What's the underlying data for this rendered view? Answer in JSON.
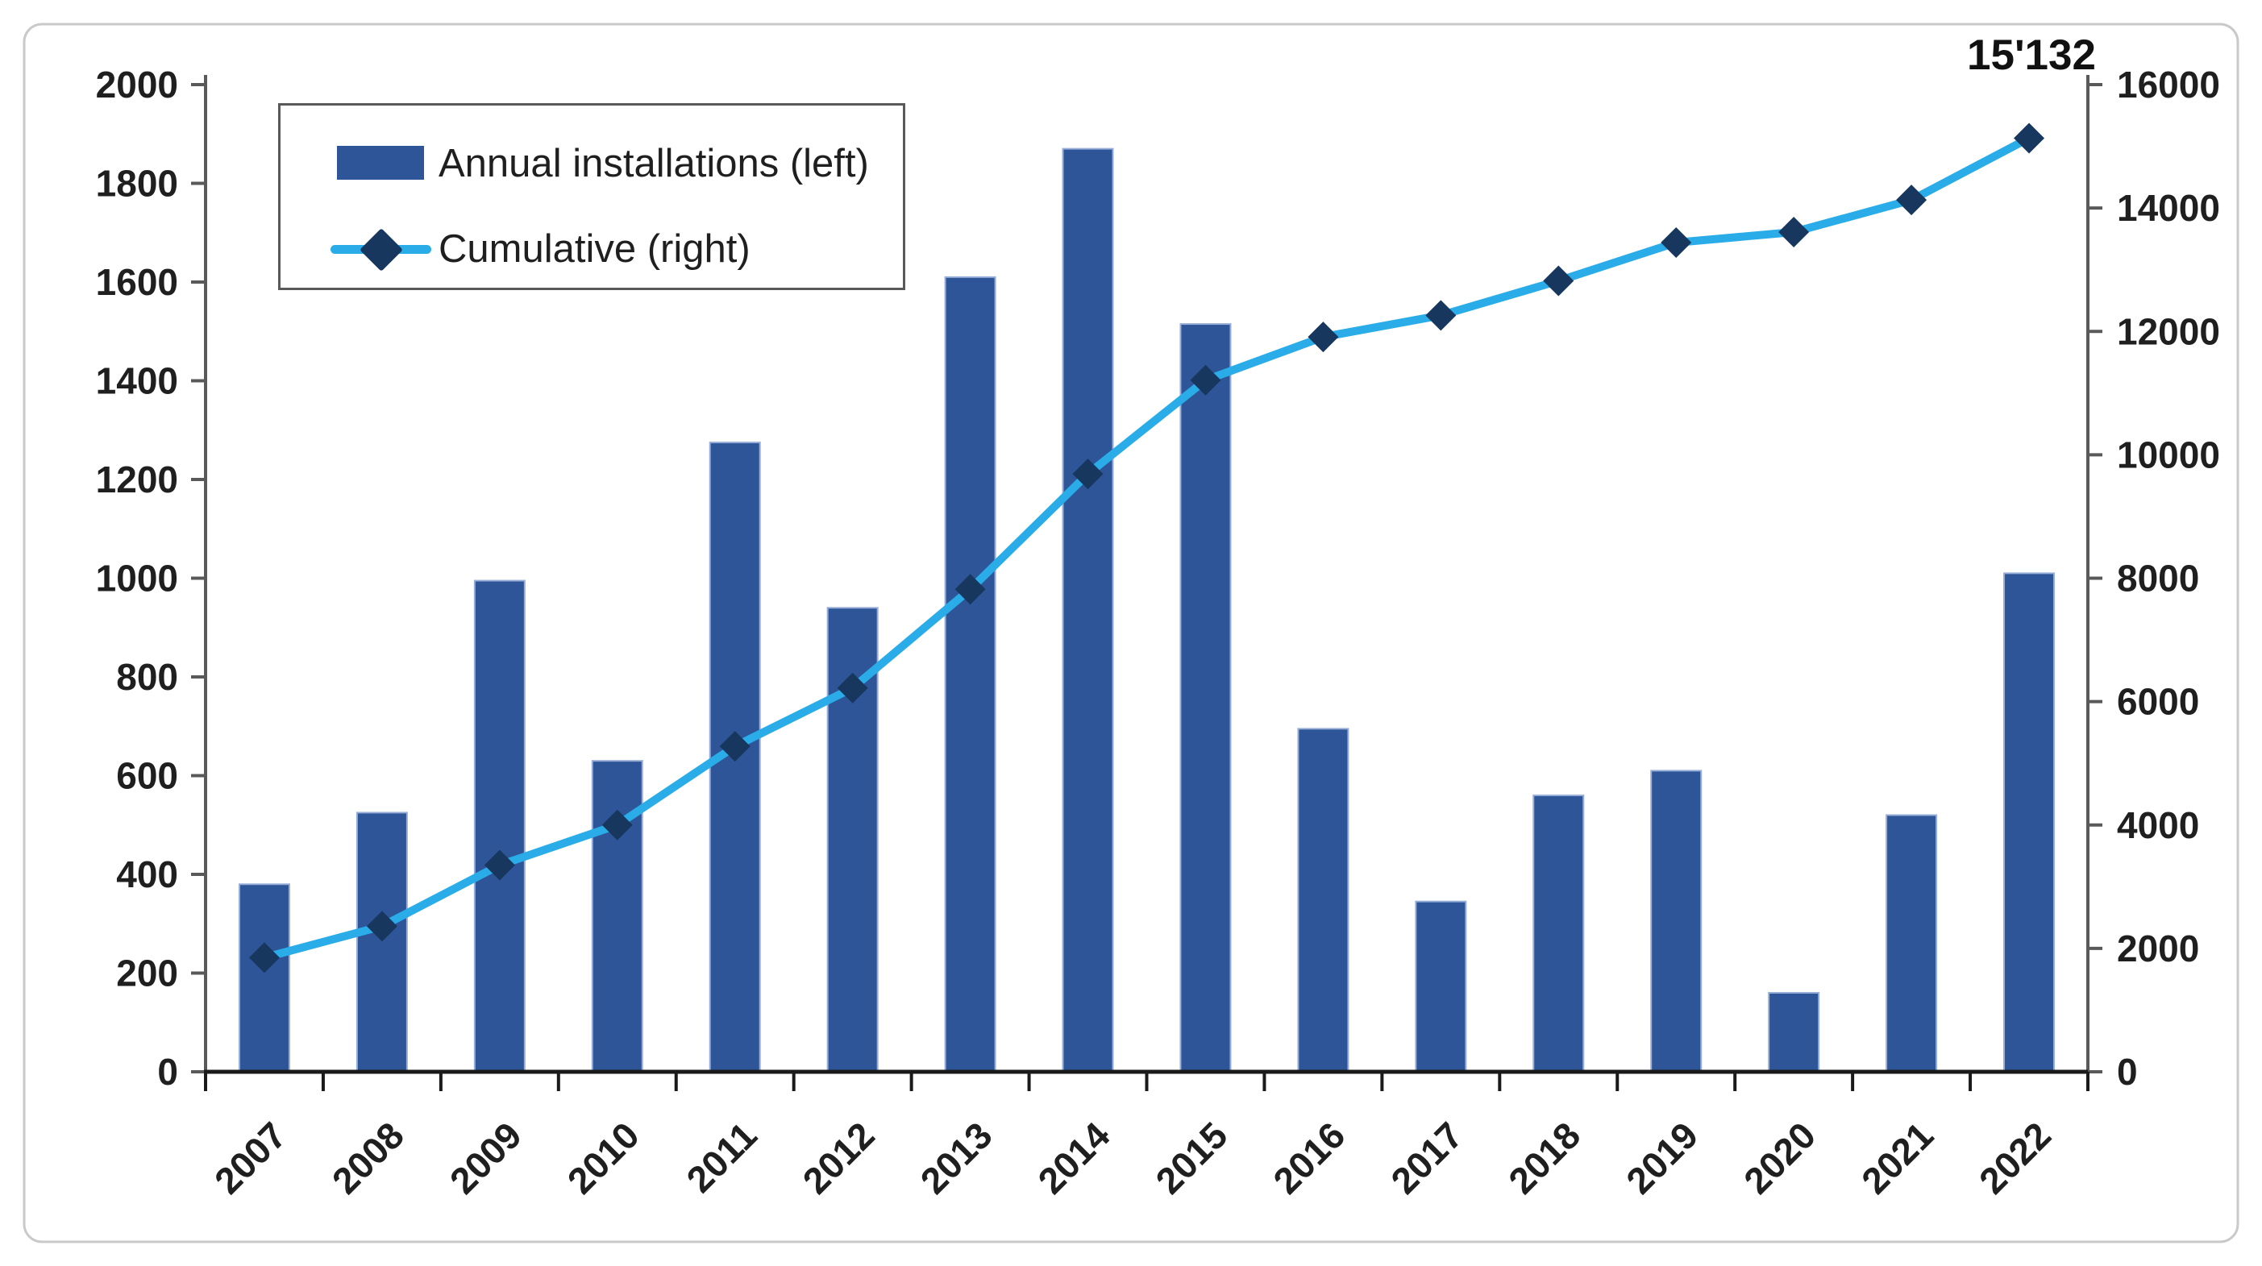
{
  "chart_data": {
    "type": "combo-bar-line",
    "categories": [
      "2007",
      "2008",
      "2009",
      "2010",
      "2011",
      "2012",
      "2013",
      "2014",
      "2015",
      "2016",
      "2017",
      "2018",
      "2019",
      "2020",
      "2021",
      "2022"
    ],
    "series": [
      {
        "name": "Annual installations (left)",
        "type": "bar",
        "axis": "left",
        "values": [
          380,
          525,
          995,
          630,
          1275,
          940,
          1610,
          1870,
          1515,
          695,
          345,
          560,
          610,
          160,
          520,
          1010
        ]
      },
      {
        "name": "Cumulative (right)",
        "type": "line",
        "axis": "right",
        "values": [
          1850,
          2360,
          3350,
          4000,
          5275,
          6220,
          7820,
          9690,
          11210,
          11910,
          12260,
          12820,
          13440,
          13610,
          14130,
          15132
        ]
      }
    ],
    "left_axis": {
      "min": 0,
      "max": 2000,
      "step": 200,
      "tick_labels": [
        "0",
        "200",
        "400",
        "600",
        "800",
        "1000",
        "1200",
        "1400",
        "1600",
        "1800",
        "2000"
      ]
    },
    "right_axis": {
      "min": 0,
      "max": 16000,
      "step": 2000,
      "tick_labels": [
        "0",
        "2000",
        "4000",
        "6000",
        "8000",
        "10000",
        "12000",
        "14000",
        "16000"
      ]
    },
    "legend": [
      {
        "label": "Annual installations (left)",
        "marker": "bar-swatch"
      },
      {
        "label": "Cumulative (right)",
        "marker": "line-with-diamond"
      }
    ],
    "annotation": {
      "text": "15'132",
      "attached_to": "2022 cumulative point"
    },
    "grid": false,
    "legend_position": "top-left-inside",
    "colors": {
      "bar_fill": "#2e5597",
      "bar_edge": "#97aed8",
      "line": "#29ace8",
      "marker": "#17375e",
      "axis_side": "#595959",
      "axis_bottom": "#1a1a1a",
      "text": "#1f1f1f",
      "frame_border": "#c9c9c9"
    }
  }
}
